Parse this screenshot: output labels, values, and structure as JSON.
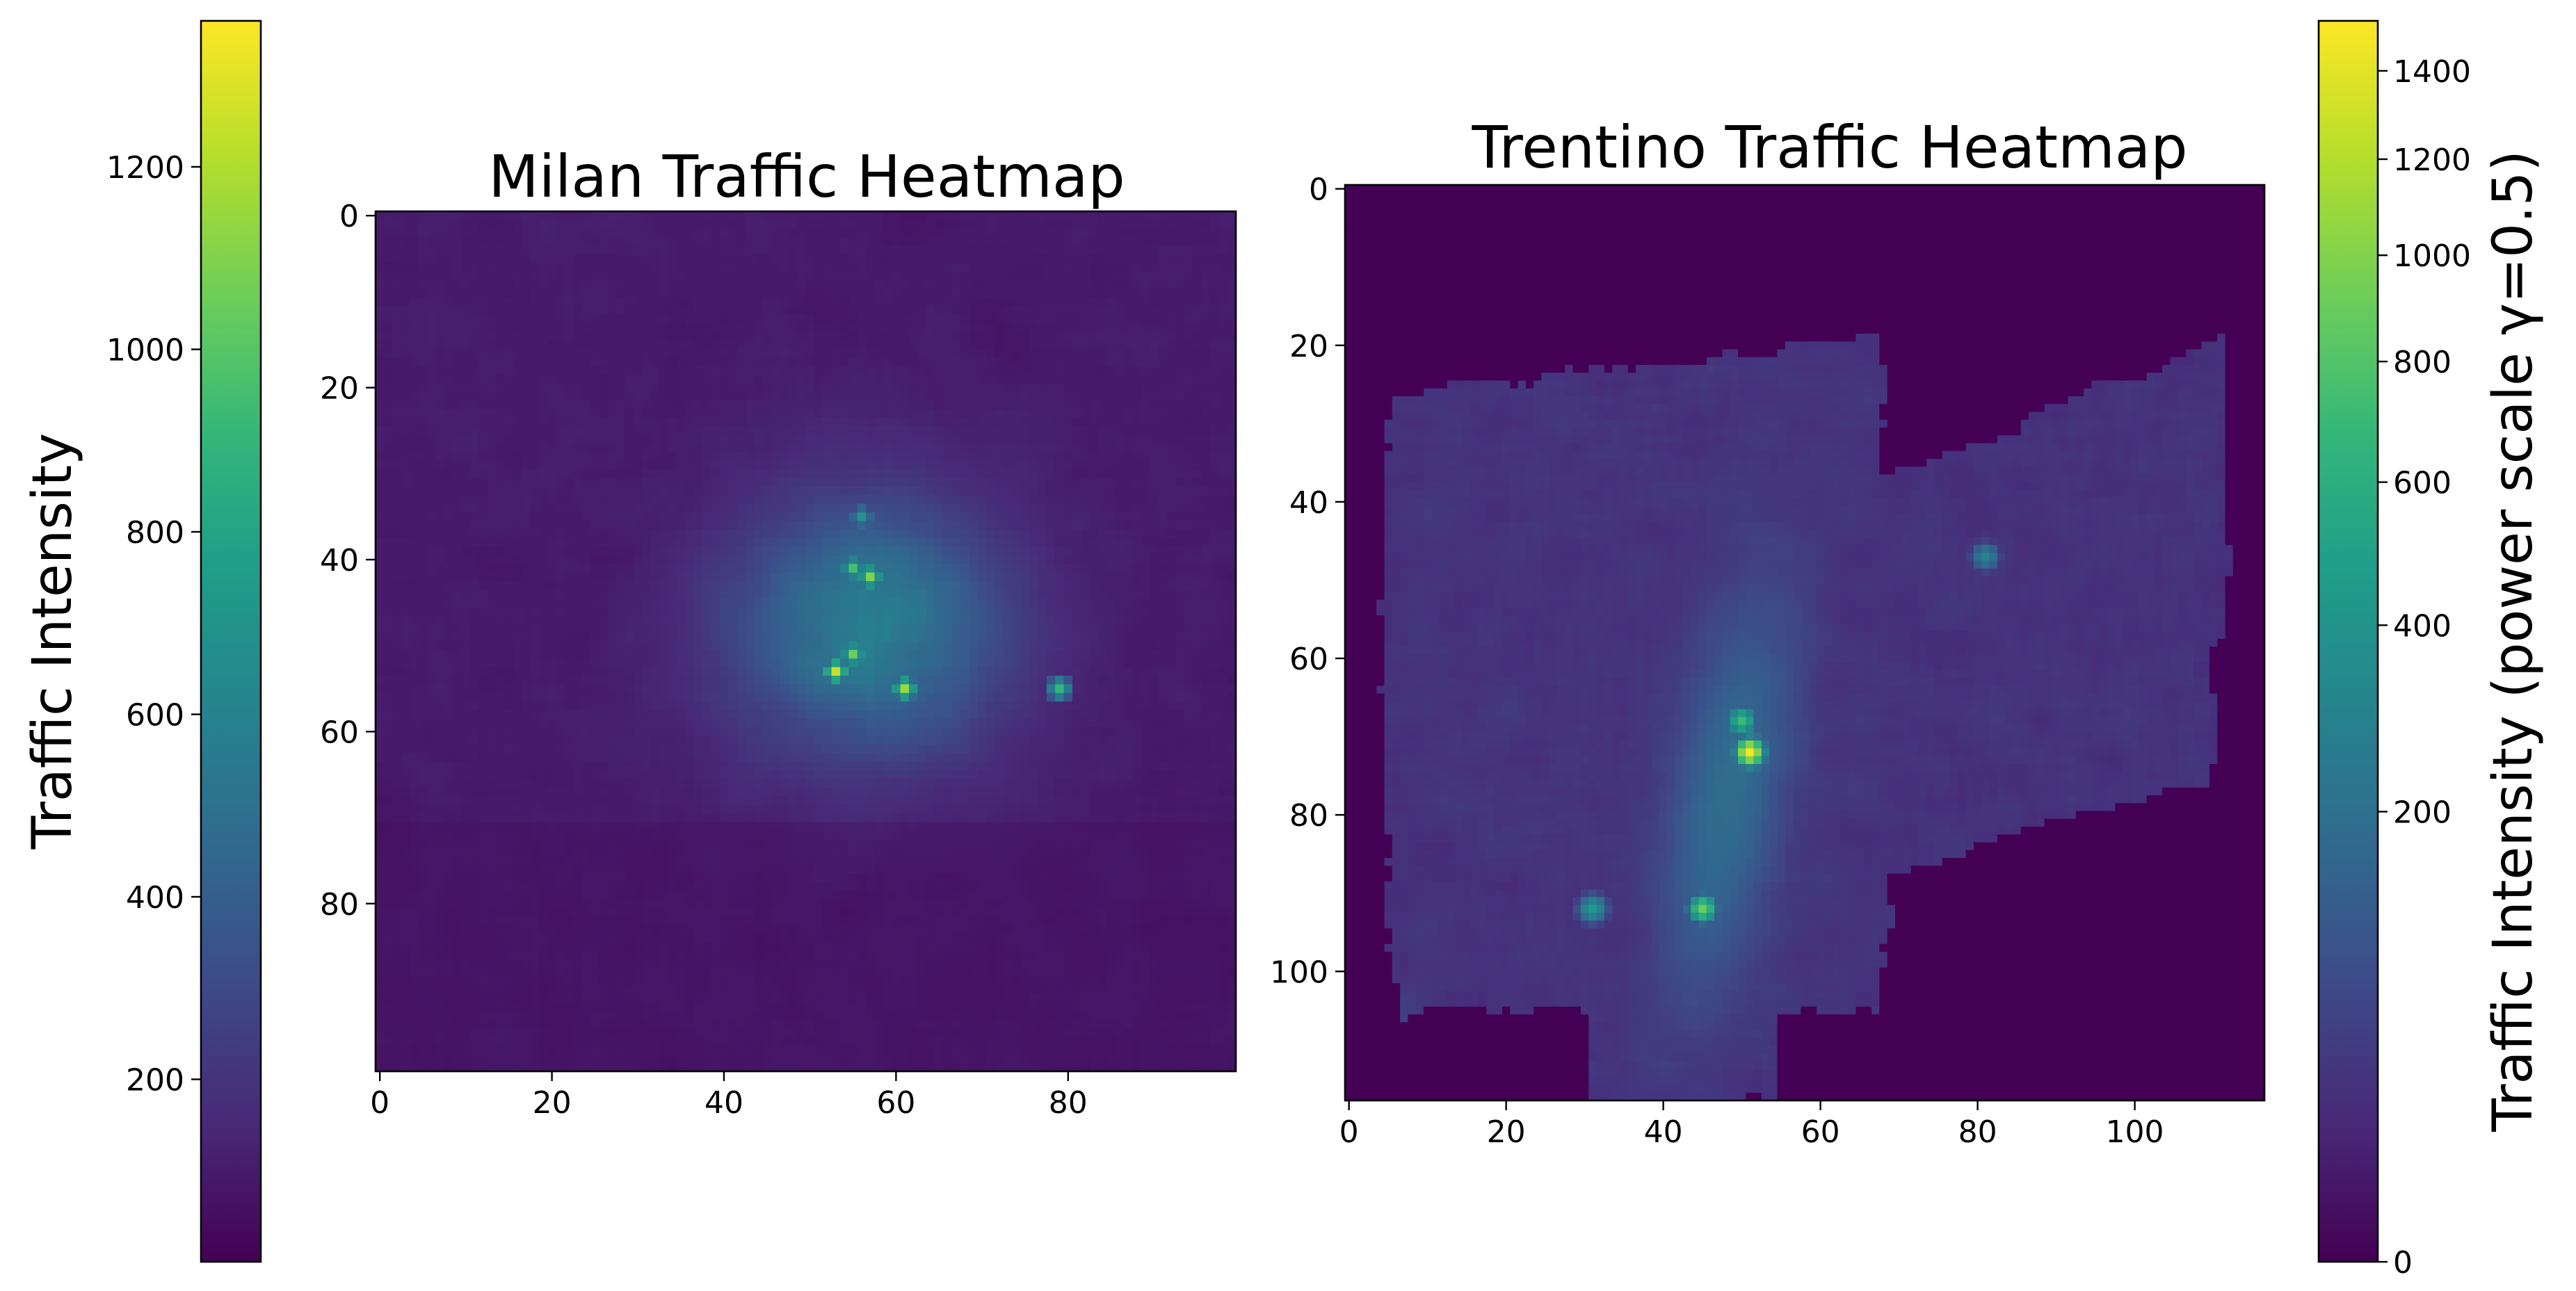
{
  "chart_data": [
    {
      "type": "heatmap",
      "title": "Milan Traffic Heatmap",
      "grid_size": [
        100,
        100
      ],
      "xlim": [
        0,
        99
      ],
      "ylim": [
        99,
        0
      ],
      "x_ticks": [
        0,
        20,
        40,
        60,
        80
      ],
      "y_ticks": [
        0,
        20,
        40,
        60,
        80
      ],
      "colormap": "viridis",
      "color_scale": "linear",
      "value_range": [
        0,
        1360
      ],
      "colorbar": {
        "position": "left",
        "label": "Traffic Intensity",
        "ticks": [
          200,
          400,
          600,
          800,
          1000,
          1200
        ]
      },
      "hotspots": [
        {
          "x": 53,
          "y": 53,
          "value": 1250
        },
        {
          "x": 61,
          "y": 55,
          "value": 1150
        },
        {
          "x": 57,
          "y": 42,
          "value": 1100
        },
        {
          "x": 55,
          "y": 41,
          "value": 950
        },
        {
          "x": 55,
          "y": 51,
          "value": 1050
        },
        {
          "x": 79,
          "y": 55,
          "value": 900
        },
        {
          "x": 56,
          "y": 35,
          "value": 700
        }
      ]
    },
    {
      "type": "heatmap",
      "title": "Trentino Traffic Heatmap",
      "grid_size": [
        117,
        117
      ],
      "xlim": [
        0,
        116
      ],
      "ylim": [
        116,
        0
      ],
      "x_ticks": [
        0,
        20,
        40,
        60,
        80,
        100
      ],
      "y_ticks": [
        0,
        20,
        40,
        60,
        80,
        100
      ],
      "colormap": "viridis",
      "color_scale": "power",
      "gamma": 0.5,
      "value_range": [
        0,
        1520
      ],
      "colorbar": {
        "position": "right",
        "label": "Traffic Intensity (power scale γ=0.5)",
        "ticks": [
          0,
          200,
          400,
          600,
          800,
          1000,
          1200,
          1400
        ]
      },
      "hotspots": [
        {
          "x": 51,
          "y": 72,
          "value": 1500
        },
        {
          "x": 45,
          "y": 92,
          "value": 900
        },
        {
          "x": 31,
          "y": 92,
          "value": 450
        },
        {
          "x": 50,
          "y": 68,
          "value": 700
        },
        {
          "x": 81,
          "y": 47,
          "value": 300
        }
      ]
    }
  ],
  "colors": {
    "viridis_low": "#440154",
    "viridis_high": "#fde725"
  }
}
